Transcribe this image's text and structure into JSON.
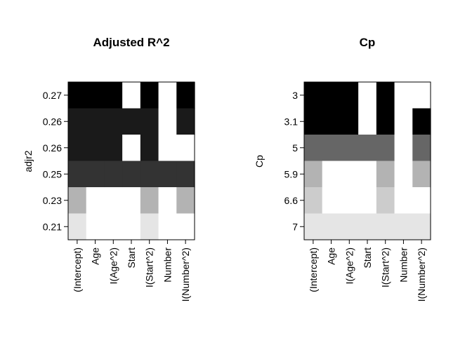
{
  "chart_data": [
    {
      "type": "heatmap",
      "title": "Adjusted R^2",
      "ylabel": "adjr2",
      "xlabel": "",
      "columns": [
        "(Intercept)",
        "Age",
        "I(Age^2)",
        "Start",
        "I(Start^2)",
        "Number",
        "I(Number^2)"
      ],
      "rows": [
        {
          "label": "0.27",
          "shade": "#000000",
          "included": [
            1,
            1,
            1,
            0,
            1,
            0,
            1
          ]
        },
        {
          "label": "0.26",
          "shade": "#1a1a1a",
          "included": [
            1,
            1,
            1,
            1,
            1,
            0,
            1
          ]
        },
        {
          "label": "0.26",
          "shade": "#1a1a1a",
          "included": [
            1,
            1,
            1,
            0,
            1,
            0,
            0
          ]
        },
        {
          "label": "0.25",
          "shade": "#333333",
          "included": [
            1,
            1,
            1,
            1,
            1,
            1,
            1
          ]
        },
        {
          "label": "0.23",
          "shade": "#b3b3b3",
          "included": [
            1,
            0,
            0,
            0,
            1,
            0,
            1
          ]
        },
        {
          "label": "0.21",
          "shade": "#e5e5e5",
          "included": [
            1,
            0,
            0,
            0,
            1,
            0,
            0
          ]
        }
      ]
    },
    {
      "type": "heatmap",
      "title": "Cp",
      "ylabel": "Cp",
      "xlabel": "",
      "columns": [
        "(Intercept)",
        "Age",
        "I(Age^2)",
        "Start",
        "I(Start^2)",
        "Number",
        "I(Number^2)"
      ],
      "rows": [
        {
          "label": "3",
          "shade": "#000000",
          "included": [
            1,
            1,
            1,
            0,
            1,
            0,
            0
          ]
        },
        {
          "label": "3.1",
          "shade": "#000000",
          "included": [
            1,
            1,
            1,
            0,
            1,
            0,
            1
          ]
        },
        {
          "label": "5",
          "shade": "#666666",
          "included": [
            1,
            1,
            1,
            1,
            1,
            0,
            1
          ]
        },
        {
          "label": "5.9",
          "shade": "#b3b3b3",
          "included": [
            1,
            0,
            0,
            0,
            1,
            0,
            1
          ]
        },
        {
          "label": "6.6",
          "shade": "#cccccc",
          "included": [
            1,
            0,
            0,
            0,
            1,
            0,
            0
          ]
        },
        {
          "label": "7",
          "shade": "#e5e5e5",
          "included": [
            1,
            1,
            1,
            1,
            1,
            1,
            1
          ]
        }
      ]
    }
  ]
}
